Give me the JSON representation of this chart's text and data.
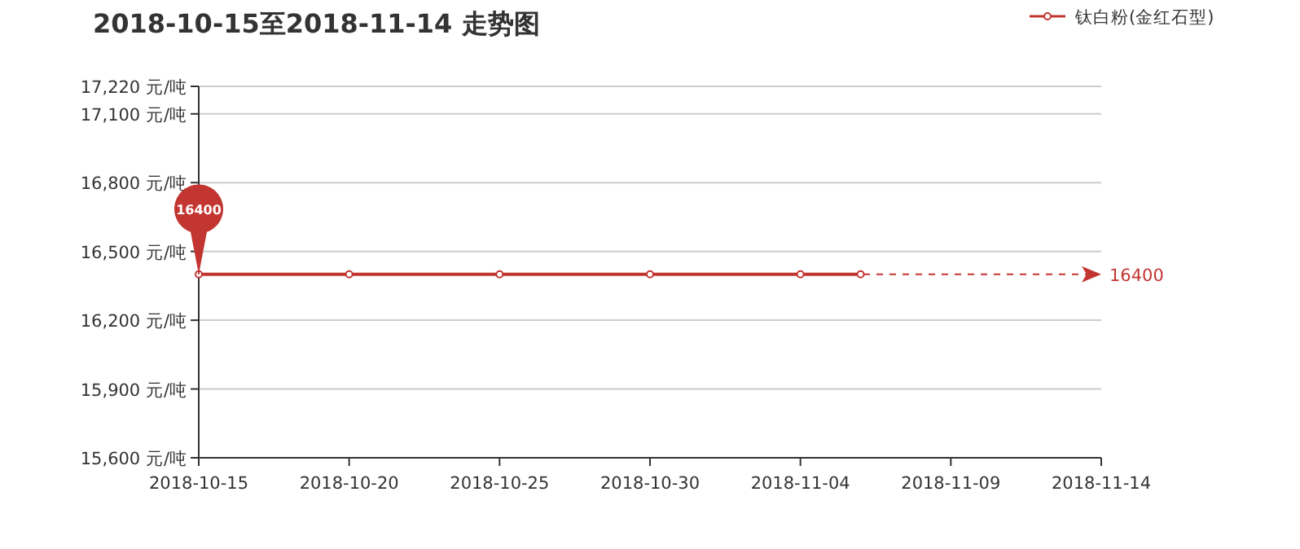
{
  "chart_data": {
    "type": "line",
    "title": "2018-10-15至2018-11-14 走势图",
    "x": [
      "2018-10-15",
      "2018-10-20",
      "2018-10-25",
      "2018-10-30",
      "2018-11-04",
      "2018-11-06"
    ],
    "series": [
      {
        "name": "钛白粉(金红石型)",
        "color": "#c23531",
        "values": [
          16400,
          16400,
          16400,
          16400,
          16400,
          16400
        ]
      }
    ],
    "xlim": [
      "2018-10-15",
      "2018-11-14"
    ],
    "xticks": [
      "2018-10-15",
      "2018-10-20",
      "2018-10-25",
      "2018-10-30",
      "2018-11-04",
      "2018-11-09",
      "2018-11-14"
    ],
    "ylim": [
      15600,
      17220
    ],
    "yticks": [
      {
        "value": 15600,
        "label": "15,600 元/吨"
      },
      {
        "value": 15900,
        "label": "15,900 元/吨"
      },
      {
        "value": 16200,
        "label": "16,200 元/吨"
      },
      {
        "value": 16500,
        "label": "16,500 元/吨"
      },
      {
        "value": 16800,
        "label": "16,800 元/吨"
      },
      {
        "value": 17100,
        "label": "17,100 元/吨"
      },
      {
        "value": 17220,
        "label": "17,220 元/吨"
      }
    ],
    "annotations": [
      "16400"
    ],
    "ref_lines": [
      {
        "axis": "y",
        "value": 16400,
        "label": "16400",
        "color": "#c23531",
        "line_style": "dashed"
      }
    ],
    "grid": "y",
    "legend": "top right",
    "marker": "circle",
    "line_style": "solid"
  }
}
